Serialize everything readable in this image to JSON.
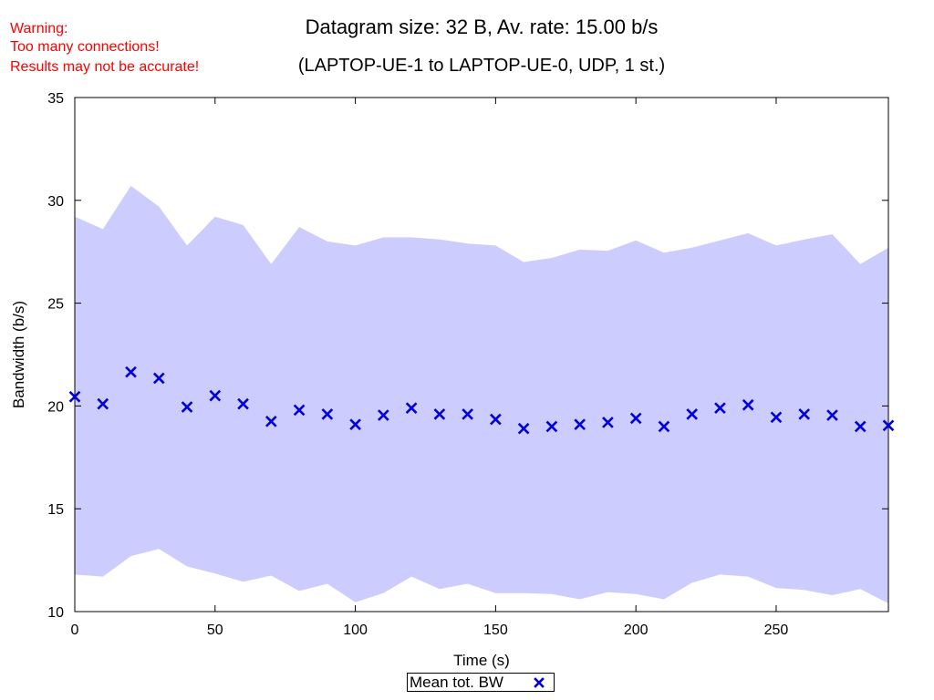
{
  "warning": {
    "line1": "Warning:",
    "line2": "Too many connections!",
    "line3": "Results may not be accurate!",
    "color": "#ff0000"
  },
  "chart_data": {
    "type": "scatter",
    "title": "Datagram size: 32 B, Av. rate: 15.00 b/s",
    "subtitle": "(LAPTOP-UE-1 to LAPTOP-UE-0, UDP, 1 st.)",
    "xlabel": "Time (s)",
    "ylabel": "Bandwidth (b/s)",
    "xlim": [
      0,
      290
    ],
    "ylim": [
      10,
      35
    ],
    "x_ticks": [
      0,
      50,
      100,
      150,
      200,
      250
    ],
    "y_ticks": [
      10,
      15,
      20,
      25,
      30,
      35
    ],
    "x": [
      0,
      10,
      20,
      30,
      40,
      50,
      60,
      70,
      80,
      90,
      100,
      110,
      120,
      130,
      140,
      150,
      160,
      170,
      180,
      190,
      200,
      210,
      220,
      230,
      240,
      250,
      260,
      270,
      280,
      290
    ],
    "series": [
      {
        "name": "Mean tot. BW",
        "marker": "x",
        "color": "#0000dd",
        "values": [
          20.45,
          20.1,
          21.65,
          21.35,
          19.95,
          20.5,
          20.1,
          19.25,
          19.8,
          19.6,
          19.1,
          19.55,
          19.9,
          19.6,
          19.6,
          19.35,
          18.9,
          19.0,
          19.1,
          19.2,
          19.4,
          19.0,
          19.6,
          19.9,
          20.05,
          19.45,
          19.6,
          19.55,
          19.0,
          19.05
        ]
      }
    ],
    "band": {
      "color": "#ccccff",
      "upper": [
        29.2,
        28.6,
        30.7,
        29.7,
        27.8,
        29.2,
        28.8,
        26.9,
        28.7,
        28.0,
        27.8,
        28.2,
        28.2,
        28.1,
        27.9,
        27.8,
        27.0,
        27.2,
        27.6,
        27.55,
        28.05,
        27.45,
        27.7,
        28.05,
        28.4,
        27.8,
        28.1,
        28.35,
        26.9,
        27.7
      ],
      "lower": [
        11.8,
        11.7,
        12.7,
        13.05,
        12.2,
        11.85,
        11.45,
        11.75,
        11.0,
        11.35,
        10.45,
        10.9,
        11.7,
        11.1,
        11.35,
        10.9,
        10.9,
        10.85,
        10.6,
        10.95,
        10.85,
        10.6,
        11.4,
        11.8,
        11.7,
        11.15,
        11.05,
        10.8,
        11.1,
        10.4
      ]
    },
    "legend": {
      "label": "Mean tot. BW",
      "position": "bottom-center"
    },
    "grid": false
  }
}
